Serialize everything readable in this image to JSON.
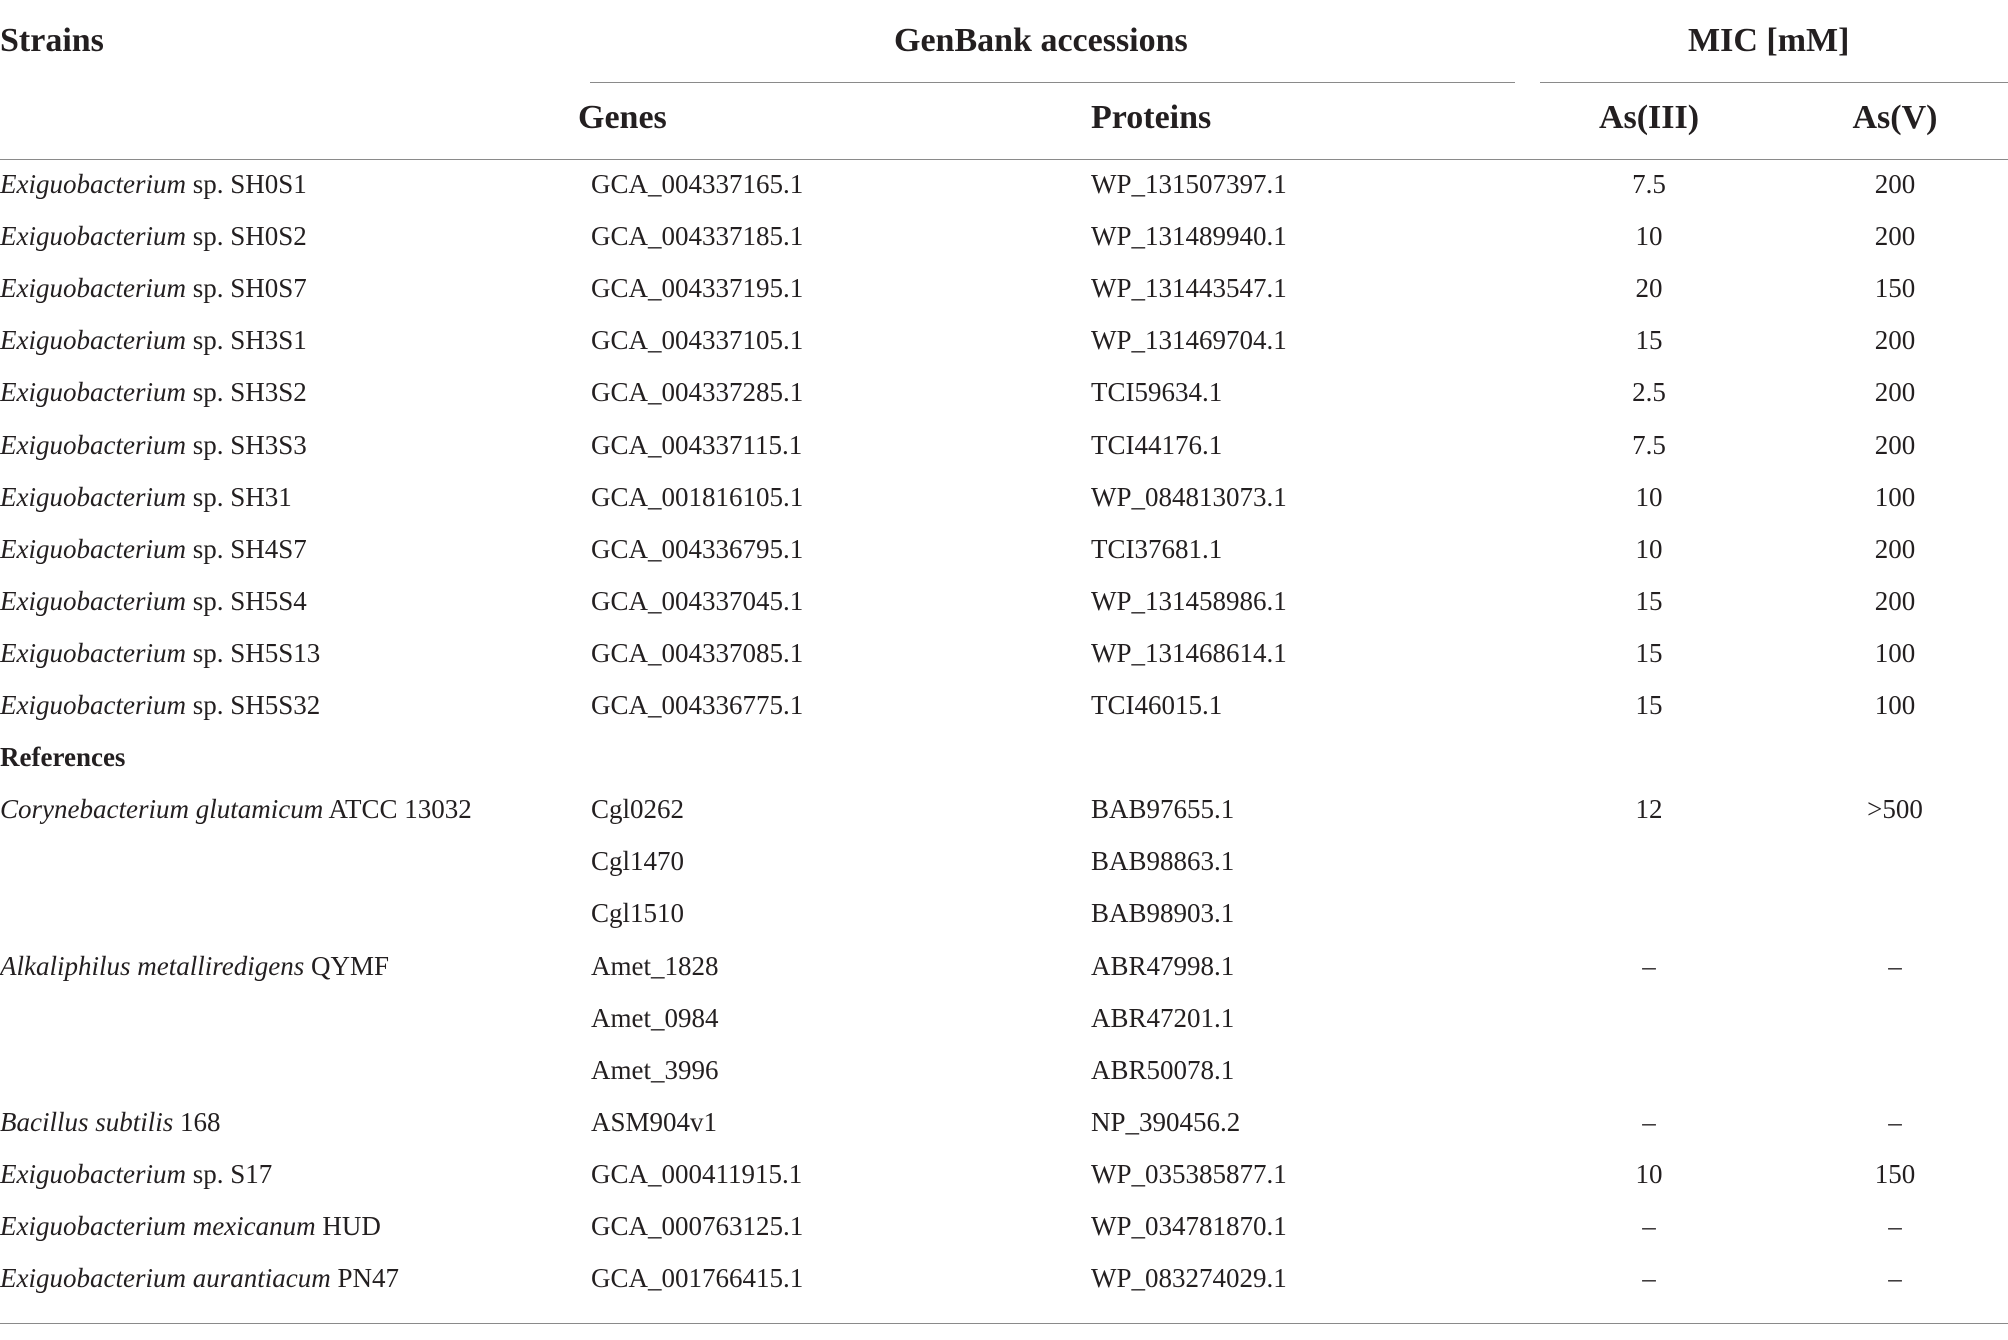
{
  "header": {
    "strains": "Strains",
    "genbank": "GenBank accessions",
    "mic": "MIC [mM]",
    "genes": "Genes",
    "proteins": "Proteins",
    "as3": "As(III)",
    "as5": "As(V)"
  },
  "rows": [
    {
      "genus": "Exiguobacterium",
      "rest": " sp. SH0S1",
      "gene": "GCA_004337165.1",
      "protein": "WP_131507397.1",
      "as3": "7.5",
      "as5": "200"
    },
    {
      "genus": "Exiguobacterium",
      "rest": " sp. SH0S2",
      "gene": "GCA_004337185.1",
      "protein": "WP_131489940.1",
      "as3": "10",
      "as5": "200"
    },
    {
      "genus": "Exiguobacterium",
      "rest": " sp. SH0S7",
      "gene": "GCA_004337195.1",
      "protein": "WP_131443547.1",
      "as3": "20",
      "as5": "150"
    },
    {
      "genus": "Exiguobacterium",
      "rest": " sp. SH3S1",
      "gene": "GCA_004337105.1",
      "protein": "WP_131469704.1",
      "as3": "15",
      "as5": "200"
    },
    {
      "genus": "Exiguobacterium",
      "rest": " sp. SH3S2",
      "gene": "GCA_004337285.1",
      "protein": "TCI59634.1",
      "as3": "2.5",
      "as5": "200"
    },
    {
      "genus": "Exiguobacterium",
      "rest": " sp. SH3S3",
      "gene": "GCA_004337115.1",
      "protein": "TCI44176.1",
      "as3": "7.5",
      "as5": "200"
    },
    {
      "genus": "Exiguobacterium",
      "rest": " sp. SH31",
      "gene": "GCA_001816105.1",
      "protein": "WP_084813073.1",
      "as3": "10",
      "as5": "100"
    },
    {
      "genus": "Exiguobacterium",
      "rest": " sp. SH4S7",
      "gene": "GCA_004336795.1",
      "protein": "TCI37681.1",
      "as3": "10",
      "as5": "200"
    },
    {
      "genus": "Exiguobacterium",
      "rest": " sp. SH5S4",
      "gene": "GCA_004337045.1",
      "protein": "WP_131458986.1",
      "as3": "15",
      "as5": "200"
    },
    {
      "genus": "Exiguobacterium",
      "rest": " sp. SH5S13",
      "gene": "GCA_004337085.1",
      "protein": "WP_131468614.1",
      "as3": "15",
      "as5": "100"
    },
    {
      "genus": "Exiguobacterium",
      "rest": " sp. SH5S32",
      "gene": "GCA_004336775.1",
      "protein": "TCI46015.1",
      "as3": "15",
      "as5": "100"
    }
  ],
  "references_label": "References",
  "references": [
    {
      "genus": "Corynebacterium glutamicum",
      "rest": " ATCC 13032",
      "gene": "Cgl0262",
      "protein": "BAB97655.1",
      "as3": "12",
      "as5": ">500"
    },
    {
      "genus": "",
      "rest": "",
      "gene": "Cgl1470",
      "protein": "BAB98863.1",
      "as3": "",
      "as5": ""
    },
    {
      "genus": "",
      "rest": "",
      "gene": "Cgl1510",
      "protein": "BAB98903.1",
      "as3": "",
      "as5": ""
    },
    {
      "genus": "Alkaliphilus metalliredigens",
      "rest": " QYMF",
      "gene": "Amet_1828",
      "protein": "ABR47998.1",
      "as3": "–",
      "as5": "–"
    },
    {
      "genus": "",
      "rest": "",
      "gene": "Amet_0984",
      "protein": "ABR47201.1",
      "as3": "",
      "as5": ""
    },
    {
      "genus": "",
      "rest": "",
      "gene": "Amet_3996",
      "protein": "ABR50078.1",
      "as3": "",
      "as5": ""
    },
    {
      "genus": "Bacillus subtilis",
      "rest": " 168",
      "gene": "ASM904v1",
      "protein": "NP_390456.2",
      "as3": "–",
      "as5": "–"
    },
    {
      "genus": "Exiguobacterium",
      "rest": " sp. S17",
      "gene": "GCA_000411915.1",
      "protein": "WP_035385877.1",
      "as3": "10",
      "as5": "150"
    },
    {
      "genus": "Exiguobacterium mexicanum",
      "rest": " HUD",
      "gene": "GCA_000763125.1",
      "protein": "WP_034781870.1",
      "as3": "–",
      "as5": "–"
    },
    {
      "genus": "Exiguobacterium aurantiacum",
      "rest": " PN47",
      "gene": "GCA_001766415.1",
      "protein": "WP_083274029.1",
      "as3": "–",
      "as5": "–"
    }
  ]
}
